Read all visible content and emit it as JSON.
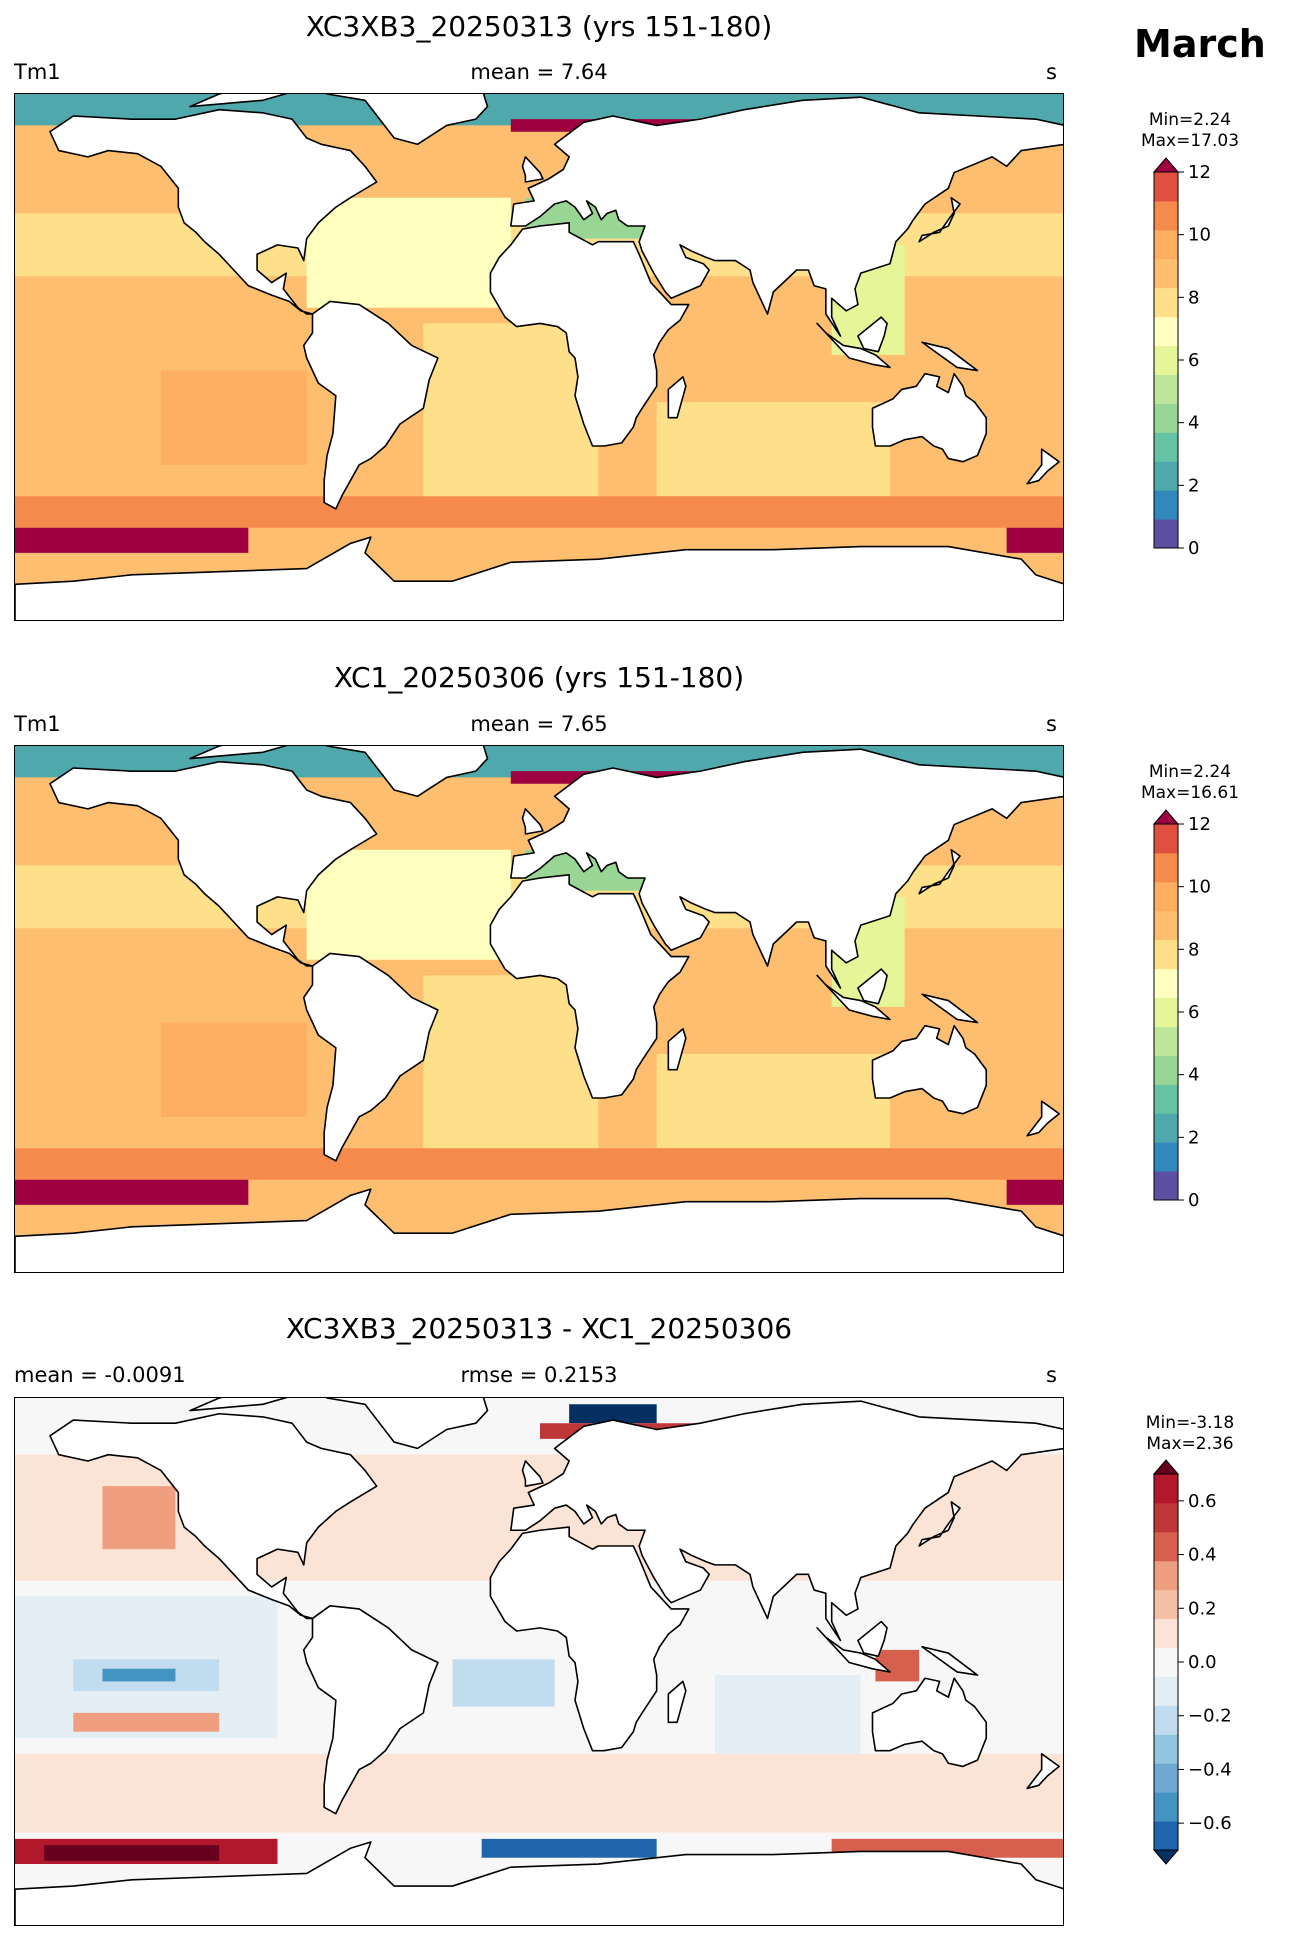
{
  "page": {
    "month": "March"
  },
  "panels": [
    {
      "title": "XC3XB3_20250313 (yrs 151-180)",
      "left_label": "Tm1",
      "center_label": "mean = 7.64",
      "right_label": "s",
      "min_text": "Min=2.24",
      "max_text": "Max=17.03",
      "colorbar": {
        "type": "sequential",
        "ticks": [
          "0",
          "2",
          "4",
          "6",
          "8",
          "10",
          "12"
        ],
        "colors": [
          "#5e4fa2",
          "#3288bd",
          "#4fa8ab",
          "#66c2a5",
          "#99d594",
          "#bfe59a",
          "#e6f598",
          "#ffffbf",
          "#fee08b",
          "#fdbf6f",
          "#fdae61",
          "#f48a4b",
          "#e0503f",
          "#9e0142"
        ]
      }
    },
    {
      "title": "XC1_20250306 (yrs 151-180)",
      "left_label": "Tm1",
      "center_label": "mean = 7.65",
      "right_label": "s",
      "min_text": "Min=2.24",
      "max_text": "Max=16.61",
      "colorbar": {
        "type": "sequential",
        "ticks": [
          "0",
          "2",
          "4",
          "6",
          "8",
          "10",
          "12"
        ],
        "colors": [
          "#5e4fa2",
          "#3288bd",
          "#4fa8ab",
          "#66c2a5",
          "#99d594",
          "#bfe59a",
          "#e6f598",
          "#ffffbf",
          "#fee08b",
          "#fdbf6f",
          "#fdae61",
          "#f48a4b",
          "#e0503f",
          "#9e0142"
        ]
      }
    },
    {
      "title": "XC3XB3_20250313 - XC1_20250306",
      "left_label": "mean = -0.0091",
      "center_label": "rmse = 0.2153",
      "right_label": "s",
      "min_text": "Min=-3.18",
      "max_text": "Max=2.36",
      "colorbar": {
        "type": "diverging",
        "ticks": [
          "−0.6",
          "−0.4",
          "−0.2",
          "0.0",
          "0.2",
          "0.4",
          "0.6"
        ],
        "colors": [
          "#053061",
          "#2166ac",
          "#4393c3",
          "#6ea8d3",
          "#92c5de",
          "#c0dcee",
          "#e4eef5",
          "#f7f7f7",
          "#fbe3d6",
          "#f4c0a6",
          "#ef9e7f",
          "#d6604d",
          "#c0373a",
          "#b2182b",
          "#67001f"
        ]
      }
    }
  ]
}
